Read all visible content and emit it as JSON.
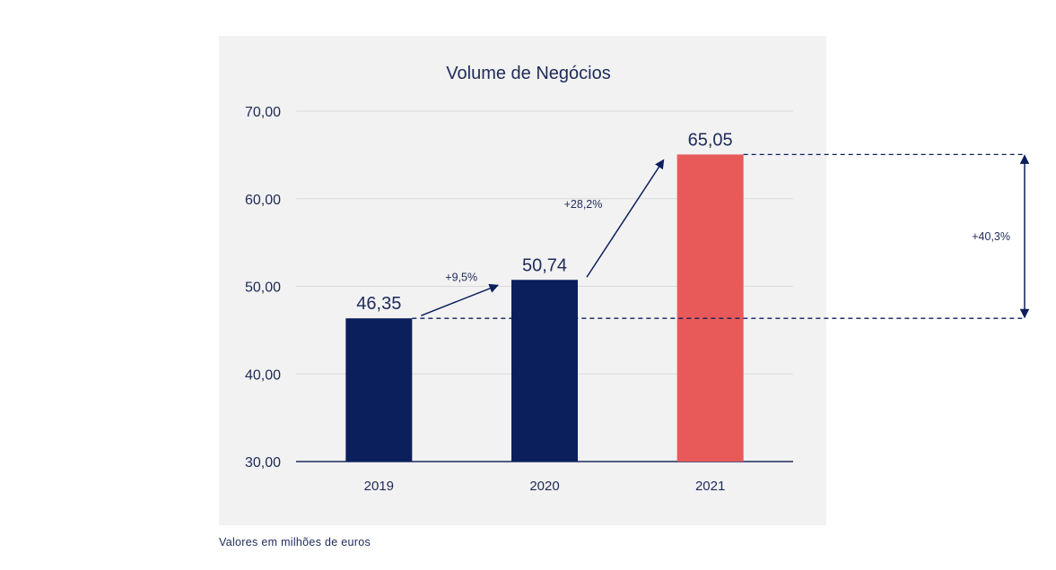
{
  "chart_data": {
    "type": "bar",
    "title": "Volume de Negócios",
    "categories": [
      "2019",
      "2020",
      "2021"
    ],
    "values": [
      46.35,
      50.74,
      65.05
    ],
    "value_labels": [
      "46,35",
      "50,74",
      "65,05"
    ],
    "bar_colors": [
      "#0b1f5c",
      "#0b1f5c",
      "#e85a5a"
    ],
    "xlabel": "",
    "ylabel": "",
    "ylim": [
      30,
      70
    ],
    "yticks": [
      30,
      40,
      50,
      60,
      70
    ],
    "ytick_labels": [
      "30,00",
      "40,00",
      "50,00",
      "60,00",
      "70,00"
    ],
    "grid": true,
    "annotations": [
      {
        "type": "growth-arrow",
        "from": "2019",
        "to": "2020",
        "label": "+9,5%"
      },
      {
        "type": "growth-arrow",
        "from": "2020",
        "to": "2021",
        "label": "+28,2%"
      },
      {
        "type": "range-bracket",
        "from_value": 46.35,
        "to_value": 65.05,
        "label": "+40,3%"
      }
    ]
  },
  "footnote": "Valores em milhões de euros",
  "colors": {
    "panel_bg": "#f2f2f2",
    "text": "#1e2a5a",
    "navy": "#0b1f5c",
    "accent": "#e85a5a",
    "grid": "#d9d9d9"
  }
}
